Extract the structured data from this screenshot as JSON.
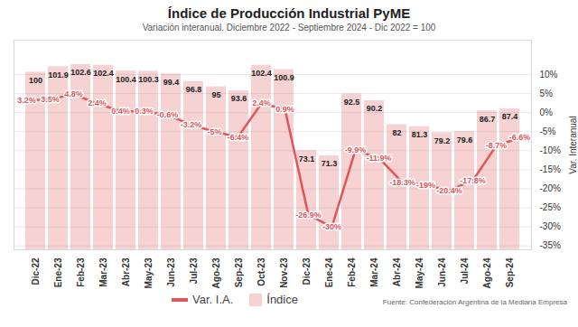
{
  "chart_data": {
    "type": "bar",
    "title": "Índice de Producción Industrial PyME",
    "subtitle": "Variación interanual. Diciembre 2022 - Septiembre 2024 - Dic 2022 = 100",
    "y_label": "Var. Interanual",
    "source": "Fuente: Confederación Argentina de la Mediana Empresa",
    "categories": [
      "Dic-22",
      "Ene-23",
      "Feb-23",
      "Mar-23",
      "Abr-23",
      "May-23",
      "Jun-23",
      "Jul-23",
      "Ago-23",
      "Sep-23",
      "Oct-23",
      "Nov-23",
      "Dic-23",
      "Ene-24",
      "Feb-24",
      "Mar-24",
      "Abr-24",
      "May-24",
      "Jun-24",
      "Jul-24",
      "Ago-24",
      "Sep-24"
    ],
    "series": [
      {
        "name": "Var. I.A.",
        "type": "line",
        "color": "#e05558",
        "axis": "y",
        "values": [
          3.2,
          3.5,
          4.8,
          2.4,
          0.4,
          0.3,
          -0.6,
          -3.2,
          -5,
          -6.4,
          2.4,
          0.9,
          -26.9,
          -30,
          -9.9,
          -11.9,
          -18.3,
          -19,
          -20.4,
          -17.8,
          -8.7,
          -6.6
        ],
        "value_labels": [
          "3.2%",
          "3.5%",
          "4.8%",
          "2.4%",
          "0.4%",
          "0.3%",
          "-0.6%",
          "-3.2%",
          "-5%",
          "-6.4%",
          "2.4%",
          "0.9%",
          "-26.9%",
          "-30%",
          "-9.9%",
          "-11.9%",
          "-18.3%",
          "-19%",
          "-20.4%",
          "-17.8%",
          "-8.7%",
          "-6.6%"
        ]
      },
      {
        "name": "Índice",
        "type": "bar",
        "color": "#f6d2d3",
        "axis": "y2",
        "values": [
          100,
          101.9,
          102.6,
          102.4,
          100.4,
          100.3,
          99.4,
          96.8,
          95,
          93.6,
          102.4,
          100.9,
          73.1,
          71.3,
          92.5,
          90.2,
          82,
          81.3,
          79.2,
          79.6,
          86.7,
          87.4
        ]
      }
    ],
    "ylim": [
      -36,
      19
    ],
    "yticks": [
      {
        "value": 10,
        "label": "10%"
      },
      {
        "value": 5,
        "label": "5%"
      },
      {
        "value": 0,
        "label": "0%"
      },
      {
        "value": -5,
        "label": "-5%"
      },
      {
        "value": -10,
        "label": "-10%"
      },
      {
        "value": -15,
        "label": "-15%"
      },
      {
        "value": -20,
        "label": "-20%"
      },
      {
        "value": -25,
        "label": "-25%"
      },
      {
        "value": -30,
        "label": "-30%"
      },
      {
        "value": -35,
        "label": "-35%"
      }
    ],
    "y2lim": [
      39,
      111
    ],
    "y2ticks": [],
    "grid": true,
    "data_labels": true,
    "legend": "bottom"
  }
}
